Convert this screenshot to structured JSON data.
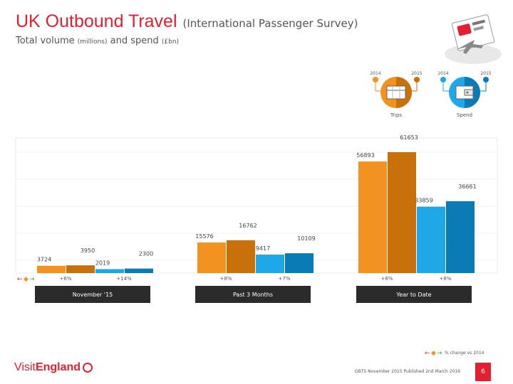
{
  "header": {
    "title": "UK Outbound Travel",
    "title_sub": "(International Passenger Survey)",
    "subtitle_a": "Total volume",
    "subtitle_b": "(millions)",
    "subtitle_c": "and spend",
    "subtitle_d": "(£bn)"
  },
  "legend_icons": {
    "trips_label": "Trips",
    "spend_label": "Spend",
    "trips_2014": "2014",
    "trips_2015": "2015",
    "spend_2014": "2014",
    "spend_2015": "2015"
  },
  "colors": {
    "trips_2014": "#f29220",
    "trips_2015": "#c8700a",
    "spend_2014": "#1ea8e8",
    "spend_2015": "#0b7bb5",
    "brand_red": "#e2202f",
    "period_box": "#2b2b2b"
  },
  "chart_data": {
    "type": "bar",
    "groups": [
      {
        "label": "November '15",
        "bars": [
          {
            "series": "trips_2014",
            "value": 3724,
            "label": "3724"
          },
          {
            "series": "trips_2015",
            "value": 3950,
            "label": "3950"
          },
          {
            "series": "spend_2014",
            "value": 2019,
            "label": "2019"
          },
          {
            "series": "spend_2015",
            "value": 2300,
            "label": "2300"
          }
        ],
        "change_trips": "+6%",
        "change_spend": "+14%"
      },
      {
        "label": "Past 3 Months",
        "bars": [
          {
            "series": "trips_2014",
            "value": 15576,
            "label": "15576"
          },
          {
            "series": "trips_2015",
            "value": 16762,
            "label": "16762"
          },
          {
            "series": "spend_2014",
            "value": 9417,
            "label": "9417"
          },
          {
            "series": "spend_2015",
            "value": 10109,
            "label": "10109"
          }
        ],
        "change_trips": "+8%",
        "change_spend": "+7%"
      },
      {
        "label": "Year to Date",
        "bars": [
          {
            "series": "trips_2014",
            "value": 56893,
            "label": "56893"
          },
          {
            "series": "trips_2015",
            "value": 61653,
            "label": "61653"
          },
          {
            "series": "spend_2014",
            "value": 33859,
            "label": "33859"
          },
          {
            "series": "spend_2015",
            "value": 36661,
            "label": "36661"
          }
        ],
        "change_trips": "+8%",
        "change_spend": "+8%"
      }
    ]
  },
  "footer": {
    "change_legend": "% change vs 2014",
    "source": "GBTS November 2015 Published 2nd March 2016",
    "page_number": "6",
    "logo_a": "Visit",
    "logo_b": "England"
  }
}
